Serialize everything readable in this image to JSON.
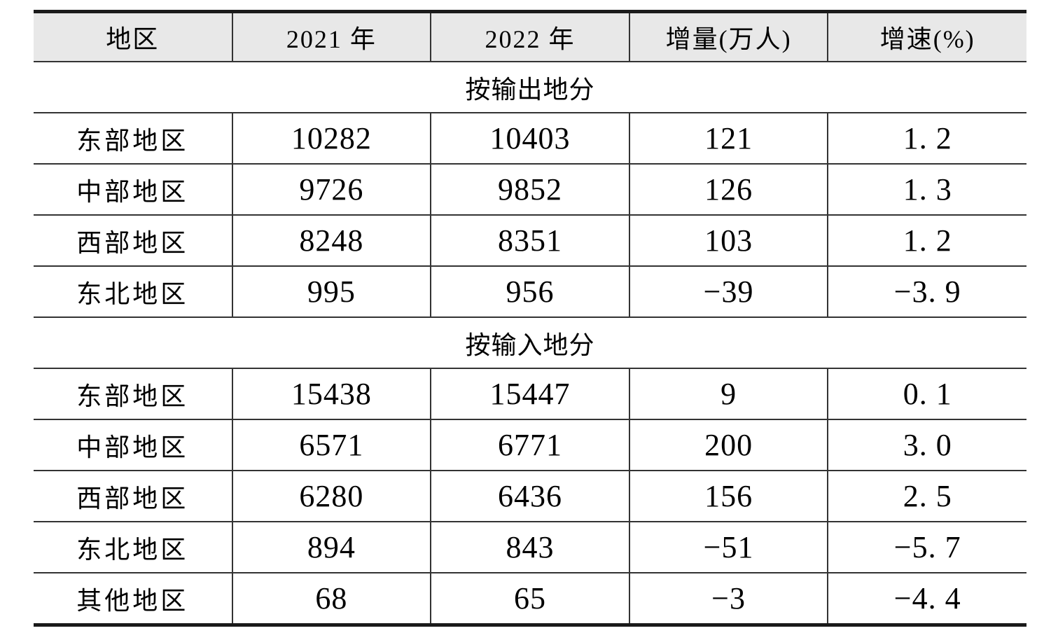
{
  "table": {
    "columns": [
      "地区",
      "2021 年",
      "2022 年",
      "增量(万人)",
      "增速(%)"
    ],
    "sections": [
      {
        "title": "按输出地分",
        "rows": [
          [
            "东部地区",
            "10282",
            "10403",
            "121",
            "1. 2"
          ],
          [
            "中部地区",
            "9726",
            "9852",
            "126",
            "1. 3"
          ],
          [
            "西部地区",
            "8248",
            "8351",
            "103",
            "1. 2"
          ],
          [
            "东北地区",
            "995",
            "956",
            "−39",
            "−3. 9"
          ]
        ]
      },
      {
        "title": "按输入地分",
        "rows": [
          [
            "东部地区",
            "15438",
            "15447",
            "9",
            "0. 1"
          ],
          [
            "中部地区",
            "6571",
            "6771",
            "200",
            "3. 0"
          ],
          [
            "西部地区",
            "6280",
            "6436",
            "156",
            "2. 5"
          ],
          [
            "东北地区",
            "894",
            "843",
            "−51",
            "−5. 7"
          ],
          [
            "其他地区",
            "68",
            "65",
            "−3",
            "−4. 4"
          ]
        ]
      }
    ],
    "colors": {
      "header_background": "#e8e8e8",
      "grid_line": "#333333",
      "outer_rule": "#1a1a1a"
    }
  }
}
